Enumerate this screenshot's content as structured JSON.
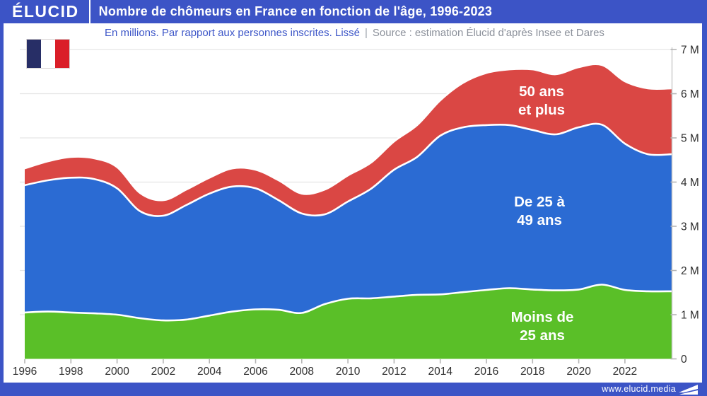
{
  "header": {
    "logo_text": "ÉLUCID",
    "title": "Nombre de chômeurs en France en fonction de l'âge, 1996-2023"
  },
  "subtitle": {
    "note": "En millions. Par rapport aux personnes inscrites. Lissé",
    "separator": "|",
    "source": "Source : estimation Élucid d'après Insee et Dares"
  },
  "footer": {
    "site": "www.elucid.media"
  },
  "icons": {
    "flag": "french-flag-icon",
    "footer_mark": "elucid-flag-icon"
  },
  "colors": {
    "frame_blue": "#3c54c6",
    "subtitle_note": "#3e57c8",
    "subtitle_source": "#8c919b",
    "axis_text": "#2e2e2e",
    "grid": "#e5e5e5",
    "area_young": "#5abf28",
    "area_mid": "#2b6bd3",
    "area_senior": "#da4744",
    "boundary_stroke": "#ffffff",
    "flag_navy": "#272e66",
    "flag_red": "#da1e28"
  },
  "chart_data": {
    "type": "area",
    "stacked": true,
    "title": "Nombre de chômeurs en France en fonction de l'âge, 1996-2023",
    "unit": "millions de personnes",
    "grid": "horizontal",
    "legend_position": "in-chart",
    "ylim": [
      0,
      7
    ],
    "x": [
      1996,
      1997,
      1998,
      1999,
      2000,
      2001,
      2002,
      2003,
      2004,
      2005,
      2006,
      2007,
      2008,
      2009,
      2010,
      2011,
      2012,
      2013,
      2014,
      2015,
      2016,
      2017,
      2018,
      2019,
      2020,
      2021,
      2022,
      2023
    ],
    "series": [
      {
        "name": "Moins de 25 ans",
        "label_lines": [
          "Moins de",
          "25 ans"
        ],
        "color": "#5abf28",
        "values": [
          1.05,
          1.07,
          1.05,
          1.03,
          1.0,
          0.92,
          0.87,
          0.89,
          0.98,
          1.07,
          1.12,
          1.11,
          1.04,
          1.24,
          1.36,
          1.37,
          1.41,
          1.45,
          1.46,
          1.51,
          1.56,
          1.6,
          1.57,
          1.55,
          1.57,
          1.68,
          1.56,
          1.53
        ]
      },
      {
        "name": "De 25 à 49 ans",
        "label_lines": [
          "De 25 à",
          "49 ans"
        ],
        "color": "#2b6bd3",
        "values": [
          2.88,
          2.97,
          3.05,
          3.04,
          2.86,
          2.42,
          2.37,
          2.59,
          2.76,
          2.83,
          2.74,
          2.48,
          2.25,
          2.03,
          2.2,
          2.48,
          2.87,
          3.12,
          3.59,
          3.73,
          3.73,
          3.69,
          3.61,
          3.53,
          3.67,
          3.62,
          3.31,
          3.1
        ]
      },
      {
        "name": "50 ans et plus",
        "label_lines": [
          "50 ans",
          "et plus"
        ],
        "color": "#da4744",
        "values": [
          0.38,
          0.43,
          0.47,
          0.47,
          0.48,
          0.41,
          0.35,
          0.35,
          0.36,
          0.41,
          0.42,
          0.45,
          0.45,
          0.56,
          0.59,
          0.59,
          0.64,
          0.72,
          0.8,
          1.01,
          1.18,
          1.26,
          1.37,
          1.36,
          1.36,
          1.35,
          1.41,
          1.49
        ]
      }
    ],
    "ytick_labels": [
      "0",
      "1 M",
      "2 M",
      "3 M",
      "4 M",
      "5 M",
      "6 M",
      "7 M"
    ],
    "xtick_labels": [
      "1996",
      "1998",
      "2000",
      "2002",
      "2004",
      "2006",
      "2008",
      "2010",
      "2012",
      "2014",
      "2016",
      "2018",
      "2020",
      "2022"
    ]
  }
}
